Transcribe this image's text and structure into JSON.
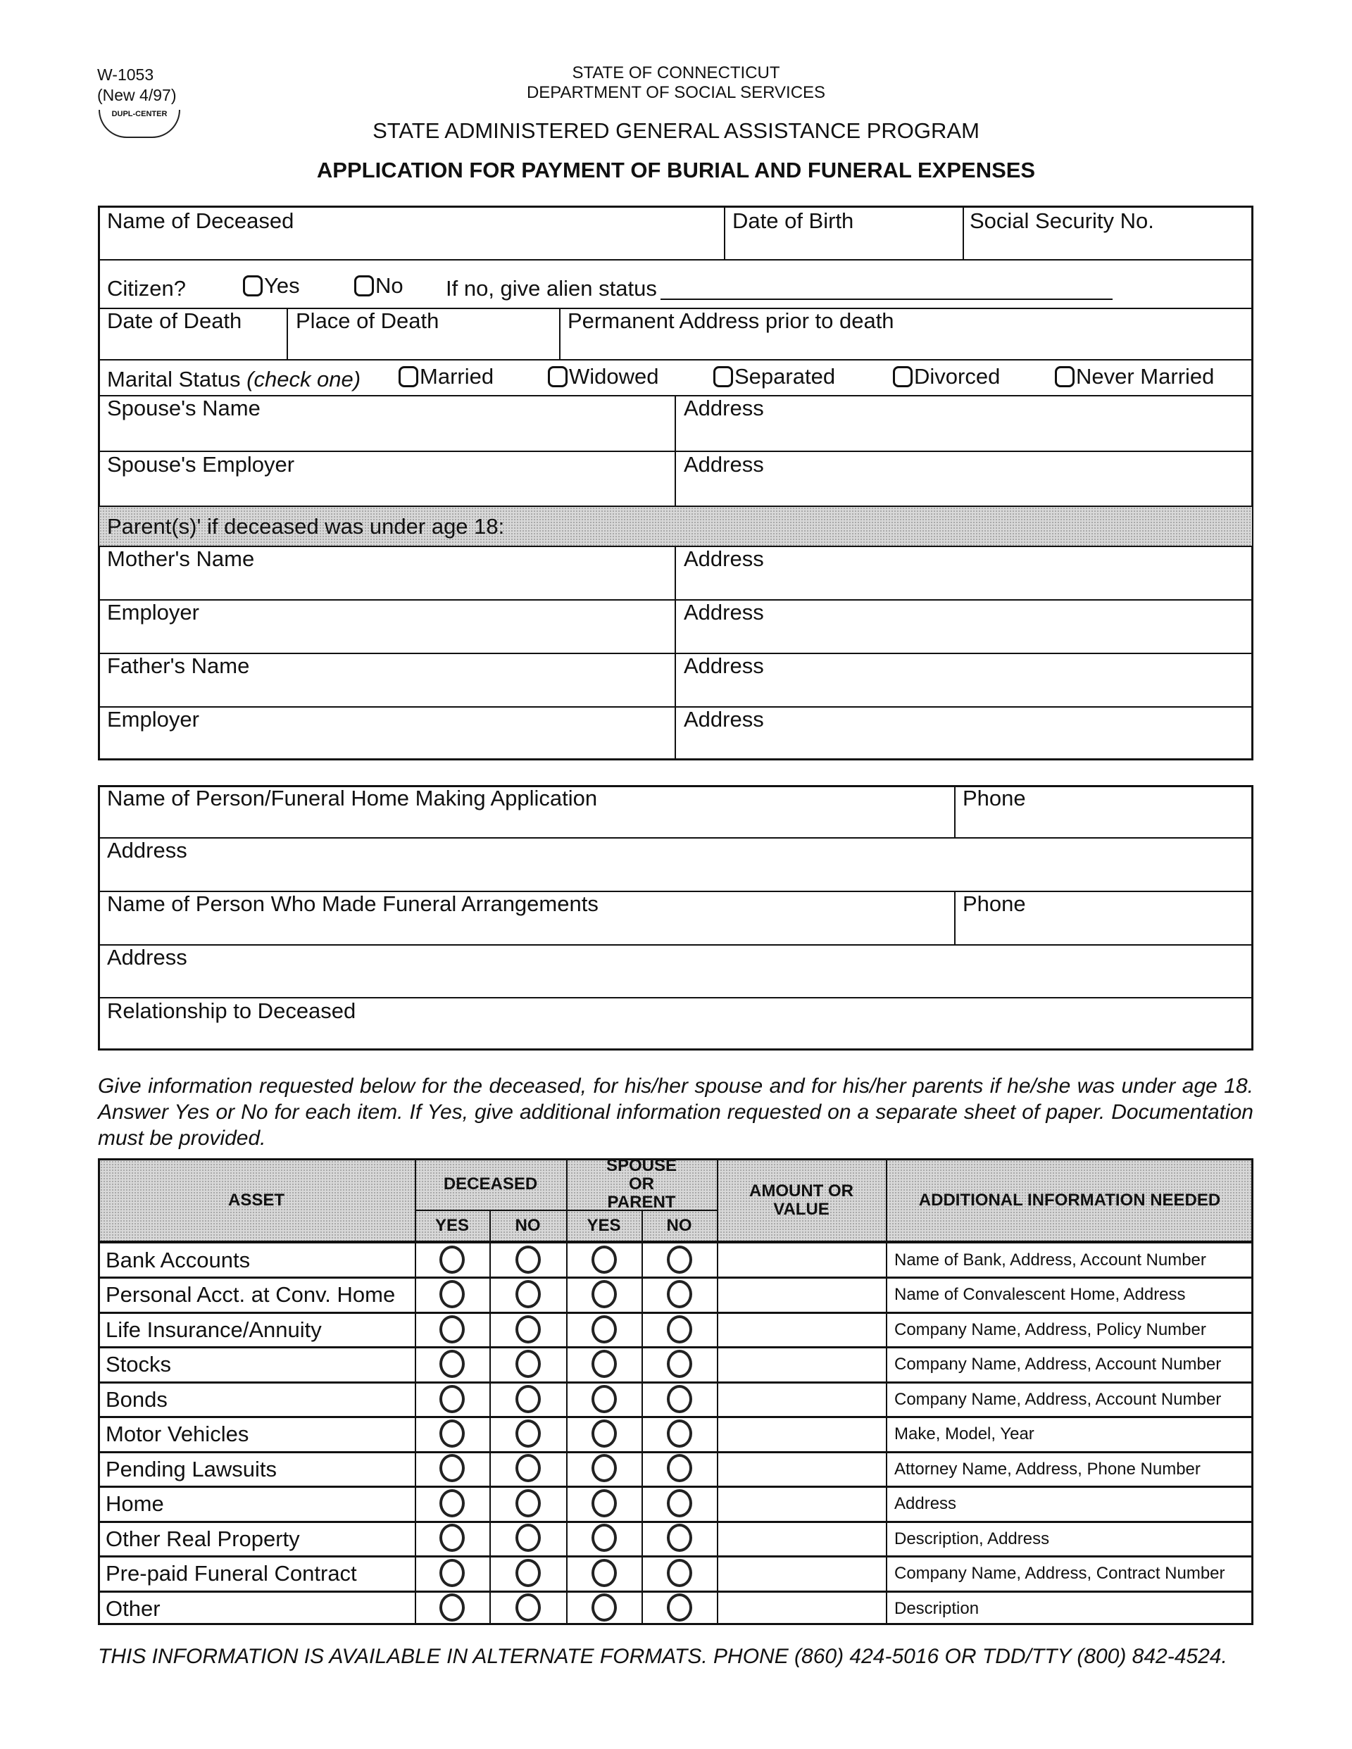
{
  "form_id": "W-1053",
  "form_rev": "(New 4/97)",
  "logo_text": "DUPL-CENTER",
  "header": {
    "state": "STATE OF CONNECTICUT",
    "dept": "DEPARTMENT OF SOCIAL SERVICES",
    "program": "STATE ADMINISTERED GENERAL ASSISTANCE PROGRAM",
    "title": "APPLICATION FOR PAYMENT OF BURIAL AND FUNERAL EXPENSES"
  },
  "deceased": {
    "name": "Name of Deceased",
    "dob": "Date of Birth",
    "ssn": "Social Security No.",
    "citizen": "Citizen?",
    "yes": "Yes",
    "no": "No",
    "alien": "If no, give alien status",
    "dod": "Date of Death",
    "pod": "Place of Death",
    "perm": "Permanent Address prior to death",
    "marital": "Marital Status",
    "check_one": "(check one)",
    "marital_options": [
      "Married",
      "Widowed",
      "Separated",
      "Divorced",
      "Never Married"
    ],
    "spouse_name": "Spouse's Name",
    "spouse_employer": "Spouse's Employer",
    "address": "Address",
    "parents": "Parent(s)' if deceased was under age 18:",
    "mother": "Mother's Name",
    "employer": "Employer",
    "father": "Father's Name"
  },
  "applicant": {
    "name": "Name of Person/Funeral Home Making Application",
    "phone": "Phone",
    "address": "Address",
    "arr_name": "Name of Person Who Made Funeral Arrangements",
    "relationship": "Relationship to Deceased"
  },
  "instructions": "Give information requested below for the deceased, for his/her spouse and for his/her parents if he/she was under age 18.  Answer Yes or No for each item.  If Yes, give additional information requested on a separate sheet of paper. Documentation must be provided.",
  "table": {
    "headers": {
      "asset": "ASSET",
      "deceased": "DECEASED",
      "spouse": "SPOUSE OR PARENT",
      "yes": "YES",
      "no": "NO",
      "amount": "AMOUNT OR VALUE",
      "info": "ADDITIONAL INFORMATION NEEDED"
    },
    "rows": [
      {
        "asset": "Bank Accounts",
        "info": "Name of Bank, Address, Account Number"
      },
      {
        "asset": "Personal Acct. at Conv. Home",
        "info": "Name of Convalescent Home, Address"
      },
      {
        "asset": "Life Insurance/Annuity",
        "info": "Company Name, Address, Policy Number"
      },
      {
        "asset": "Stocks",
        "info": "Company Name, Address, Account Number"
      },
      {
        "asset": "Bonds",
        "info": "Company Name, Address, Account Number"
      },
      {
        "asset": "Motor Vehicles",
        "info": "Make, Model, Year"
      },
      {
        "asset": "Pending Lawsuits",
        "info": "Attorney Name, Address, Phone Number"
      },
      {
        "asset": "Home",
        "info": "Address"
      },
      {
        "asset": "Other Real Property",
        "info": "Description, Address"
      },
      {
        "asset": "Pre-paid Funeral Contract",
        "info": "Company Name, Address, Contract Number"
      },
      {
        "asset": "Other",
        "info": "Description"
      }
    ]
  },
  "footer": "THIS INFORMATION IS AVAILABLE IN ALTERNATE FORMATS.  PHONE (860) 424-5016 OR TDD/TTY (800) 842-4524."
}
